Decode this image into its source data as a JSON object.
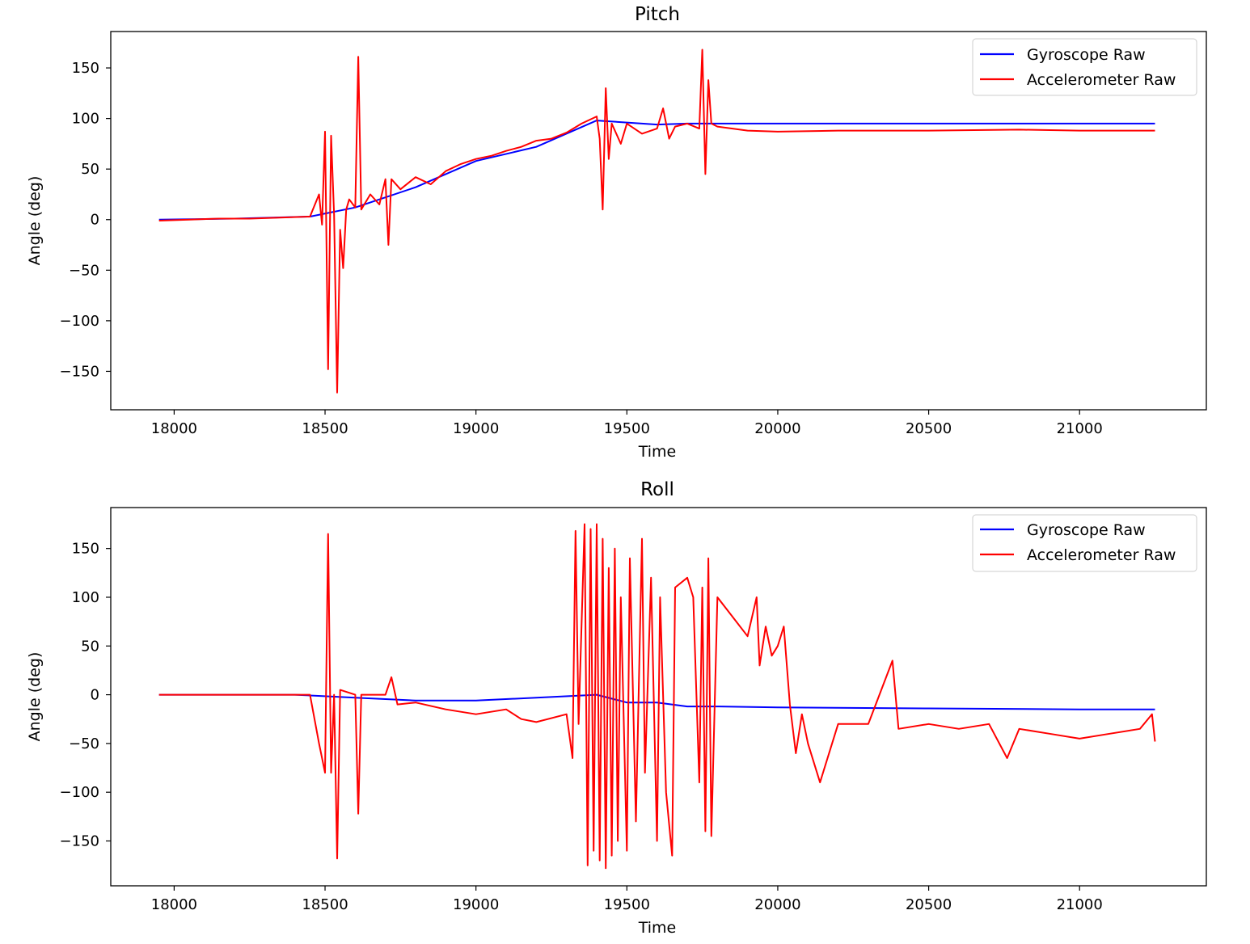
{
  "chart_data": [
    {
      "type": "line",
      "title": "Pitch",
      "xlabel": "Time",
      "ylabel": "Angle (deg)",
      "xlim": [
        17790,
        21420
      ],
      "ylim": [
        -188,
        186
      ],
      "xticks": [
        18000,
        18500,
        19000,
        19500,
        20000,
        20500,
        21000
      ],
      "yticks": [
        -150,
        -100,
        -50,
        0,
        50,
        100,
        150
      ],
      "grid": false,
      "legend_position": "top-right",
      "series": [
        {
          "name": "Gyroscope Raw",
          "color": "#0000ff",
          "points": [
            [
              17950,
              0
            ],
            [
              18200,
              1
            ],
            [
              18450,
              3
            ],
            [
              18600,
              12
            ],
            [
              18800,
              32
            ],
            [
              19000,
              58
            ],
            [
              19200,
              72
            ],
            [
              19400,
              98
            ],
            [
              19500,
              96
            ],
            [
              19600,
              94
            ],
            [
              19700,
              95
            ],
            [
              19800,
              95
            ],
            [
              20000,
              95
            ],
            [
              20500,
              95
            ],
            [
              21000,
              95
            ],
            [
              21250,
              95
            ]
          ]
        },
        {
          "name": "Accelerometer Raw",
          "color": "#ff0000",
          "points": [
            [
              17950,
              -1
            ],
            [
              18050,
              0
            ],
            [
              18150,
              1
            ],
            [
              18250,
              1
            ],
            [
              18350,
              2
            ],
            [
              18450,
              3
            ],
            [
              18480,
              25
            ],
            [
              18490,
              -5
            ],
            [
              18500,
              87
            ],
            [
              18510,
              -148
            ],
            [
              18520,
              83
            ],
            [
              18530,
              5
            ],
            [
              18540,
              -171
            ],
            [
              18550,
              -10
            ],
            [
              18560,
              -48
            ],
            [
              18570,
              10
            ],
            [
              18580,
              20
            ],
            [
              18600,
              12
            ],
            [
              18610,
              161
            ],
            [
              18620,
              10
            ],
            [
              18650,
              25
            ],
            [
              18680,
              15
            ],
            [
              18700,
              40
            ],
            [
              18710,
              -25
            ],
            [
              18720,
              40
            ],
            [
              18750,
              30
            ],
            [
              18800,
              42
            ],
            [
              18850,
              35
            ],
            [
              18900,
              48
            ],
            [
              18950,
              55
            ],
            [
              19000,
              60
            ],
            [
              19050,
              63
            ],
            [
              19100,
              68
            ],
            [
              19150,
              72
            ],
            [
              19200,
              78
            ],
            [
              19250,
              80
            ],
            [
              19300,
              86
            ],
            [
              19350,
              95
            ],
            [
              19400,
              102
            ],
            [
              19410,
              80
            ],
            [
              19420,
              10
            ],
            [
              19430,
              130
            ],
            [
              19440,
              60
            ],
            [
              19450,
              95
            ],
            [
              19480,
              75
            ],
            [
              19500,
              95
            ],
            [
              19550,
              85
            ],
            [
              19600,
              90
            ],
            [
              19620,
              110
            ],
            [
              19640,
              80
            ],
            [
              19660,
              92
            ],
            [
              19700,
              95
            ],
            [
              19740,
              90
            ],
            [
              19750,
              168
            ],
            [
              19760,
              45
            ],
            [
              19770,
              138
            ],
            [
              19780,
              95
            ],
            [
              19800,
              92
            ],
            [
              19850,
              90
            ],
            [
              19900,
              88
            ],
            [
              20000,
              87
            ],
            [
              20200,
              88
            ],
            [
              20500,
              88
            ],
            [
              20800,
              89
            ],
            [
              21000,
              88
            ],
            [
              21250,
              88
            ]
          ]
        }
      ]
    },
    {
      "type": "line",
      "title": "Roll",
      "xlabel": "Time",
      "ylabel": "Angle (deg)",
      "xlim": [
        17790,
        21420
      ],
      "ylim": [
        -196,
        192
      ],
      "xticks": [
        18000,
        18500,
        19000,
        19500,
        20000,
        20500,
        21000
      ],
      "yticks": [
        -150,
        -100,
        -50,
        0,
        50,
        100,
        150
      ],
      "grid": false,
      "legend_position": "top-right",
      "series": [
        {
          "name": "Gyroscope Raw",
          "color": "#0000ff",
          "points": [
            [
              17950,
              0
            ],
            [
              18400,
              0
            ],
            [
              18600,
              -3
            ],
            [
              18800,
              -6
            ],
            [
              19000,
              -6
            ],
            [
              19200,
              -3
            ],
            [
              19400,
              0
            ],
            [
              19500,
              -8
            ],
            [
              19600,
              -8
            ],
            [
              19700,
              -12
            ],
            [
              19800,
              -12
            ],
            [
              20000,
              -13
            ],
            [
              20500,
              -14
            ],
            [
              21000,
              -15
            ],
            [
              21250,
              -15
            ]
          ]
        },
        {
          "name": "Accelerometer Raw",
          "color": "#ff0000",
          "points": [
            [
              17950,
              0
            ],
            [
              18200,
              0
            ],
            [
              18450,
              0
            ],
            [
              18480,
              -50
            ],
            [
              18500,
              -80
            ],
            [
              18510,
              165
            ],
            [
              18520,
              -80
            ],
            [
              18530,
              0
            ],
            [
              18540,
              -168
            ],
            [
              18550,
              5
            ],
            [
              18600,
              0
            ],
            [
              18610,
              -122
            ],
            [
              18620,
              0
            ],
            [
              18700,
              0
            ],
            [
              18720,
              18
            ],
            [
              18740,
              -10
            ],
            [
              18800,
              -8
            ],
            [
              18900,
              -15
            ],
            [
              19000,
              -20
            ],
            [
              19100,
              -15
            ],
            [
              19150,
              -25
            ],
            [
              19200,
              -28
            ],
            [
              19300,
              -20
            ],
            [
              19320,
              -65
            ],
            [
              19330,
              168
            ],
            [
              19340,
              -30
            ],
            [
              19360,
              175
            ],
            [
              19370,
              -175
            ],
            [
              19380,
              170
            ],
            [
              19390,
              -160
            ],
            [
              19400,
              175
            ],
            [
              19410,
              -170
            ],
            [
              19420,
              160
            ],
            [
              19430,
              -178
            ],
            [
              19440,
              130
            ],
            [
              19450,
              -165
            ],
            [
              19460,
              150
            ],
            [
              19470,
              -150
            ],
            [
              19480,
              100
            ],
            [
              19500,
              -160
            ],
            [
              19510,
              140
            ],
            [
              19530,
              -130
            ],
            [
              19550,
              160
            ],
            [
              19560,
              -80
            ],
            [
              19580,
              120
            ],
            [
              19600,
              -150
            ],
            [
              19610,
              100
            ],
            [
              19630,
              -100
            ],
            [
              19650,
              -165
            ],
            [
              19660,
              110
            ],
            [
              19700,
              120
            ],
            [
              19720,
              100
            ],
            [
              19740,
              -90
            ],
            [
              19750,
              110
            ],
            [
              19760,
              -140
            ],
            [
              19770,
              140
            ],
            [
              19780,
              -145
            ],
            [
              19800,
              100
            ],
            [
              19850,
              80
            ],
            [
              19900,
              60
            ],
            [
              19930,
              100
            ],
            [
              19940,
              30
            ],
            [
              19960,
              70
            ],
            [
              19980,
              40
            ],
            [
              20000,
              50
            ],
            [
              20020,
              70
            ],
            [
              20040,
              -10
            ],
            [
              20060,
              -60
            ],
            [
              20080,
              -20
            ],
            [
              20100,
              -50
            ],
            [
              20140,
              -90
            ],
            [
              20200,
              -30
            ],
            [
              20300,
              -30
            ],
            [
              20380,
              35
            ],
            [
              20400,
              -35
            ],
            [
              20500,
              -30
            ],
            [
              20600,
              -35
            ],
            [
              20700,
              -30
            ],
            [
              20760,
              -65
            ],
            [
              20800,
              -35
            ],
            [
              20900,
              -40
            ],
            [
              21000,
              -45
            ],
            [
              21100,
              -40
            ],
            [
              21200,
              -35
            ],
            [
              21240,
              -20
            ],
            [
              21250,
              -48
            ]
          ]
        }
      ]
    }
  ]
}
